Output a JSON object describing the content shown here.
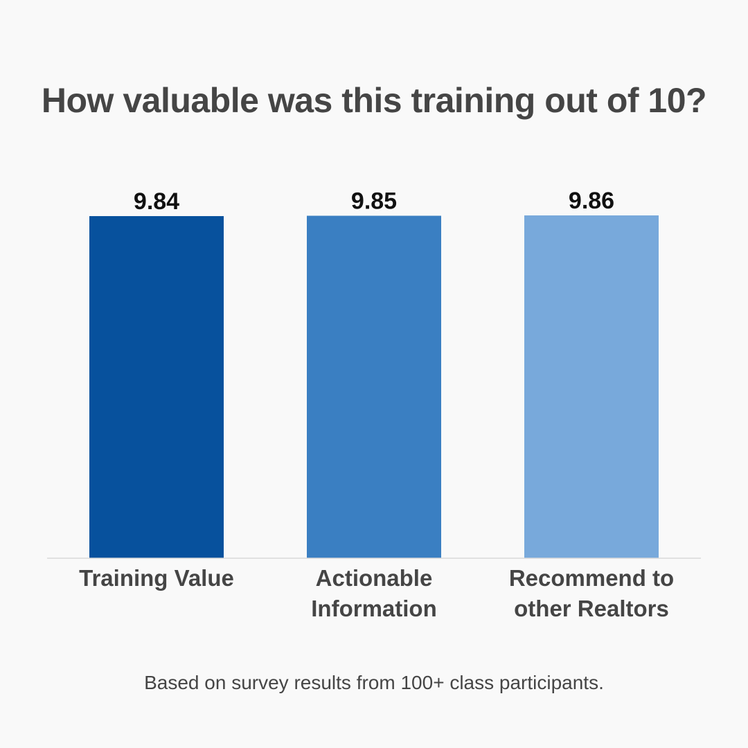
{
  "title": "How valuable was this training out of 10?",
  "footnote": "Based on survey results from 100+ class participants.",
  "chart_data": {
    "type": "bar",
    "title": "How valuable was this training out of 10?",
    "categories": [
      [
        "Training Value"
      ],
      [
        "Actionable",
        "Information"
      ],
      [
        "Recommend to",
        "other Realtors"
      ]
    ],
    "values": [
      9.84,
      9.85,
      9.86
    ],
    "data_labels": [
      "9.84",
      "9.85",
      "9.86"
    ],
    "colors": [
      "#07519d",
      "#3a7fc2",
      "#78a9db"
    ],
    "xlabel": "",
    "ylabel": "",
    "ylim": [
      0,
      10
    ],
    "grid": false,
    "legend": "none"
  }
}
